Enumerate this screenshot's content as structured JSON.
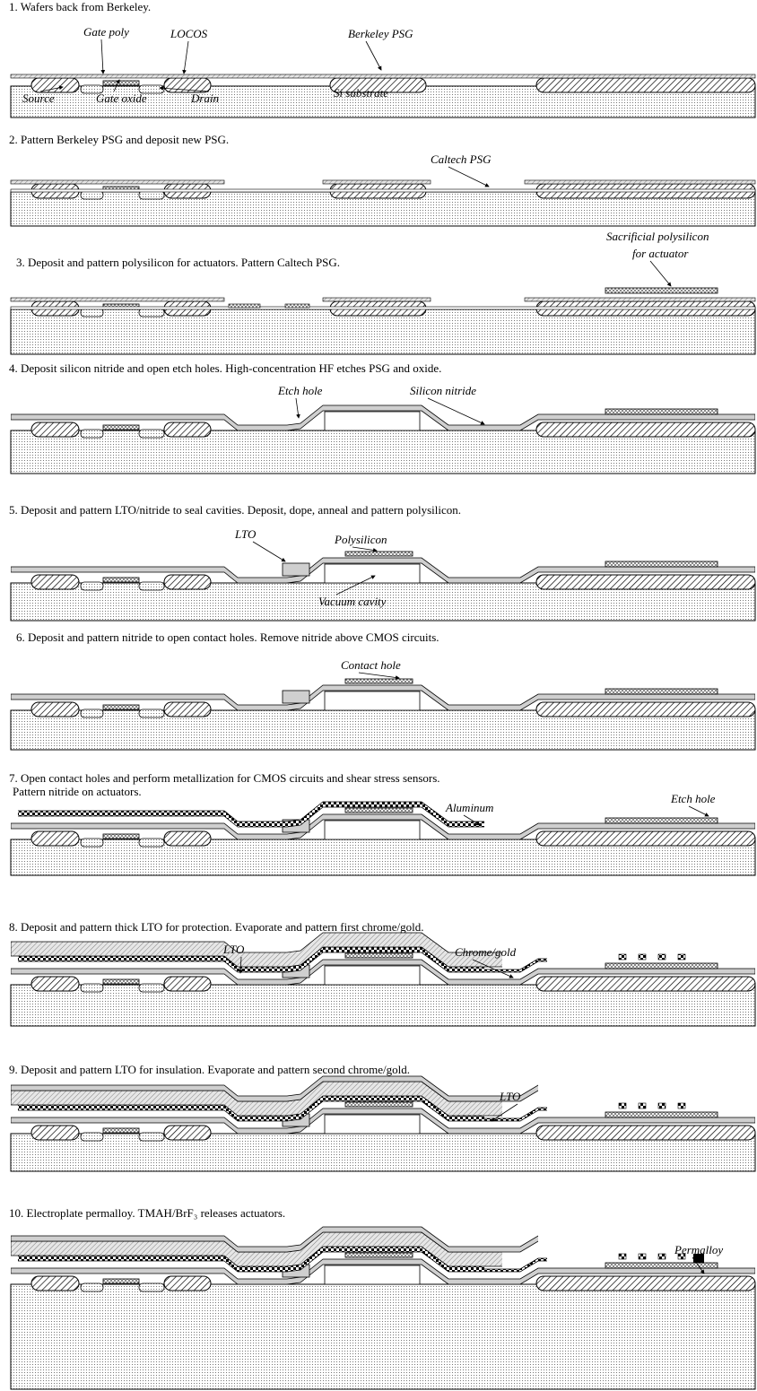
{
  "steps": [
    {
      "title": [
        "1. Wafers back from Berkeley."
      ],
      "labels": [
        "Gate poly",
        "LOCOS",
        "Berkeley PSG",
        "Source",
        "Gate oxide",
        "Drain",
        "Si substrate"
      ]
    },
    {
      "title": [
        "2. Pattern Berkeley PSG and deposit new PSG."
      ],
      "labels": [
        "Caltech PSG"
      ]
    },
    {
      "title": [
        "3. Deposit and pattern polysilicon for actuators. Pattern Caltech PSG."
      ],
      "labels": [
        "Sacrificial polysilicon",
        "for actuator"
      ]
    },
    {
      "title": [
        "4. Deposit silicon nitride and open etch holes. High-concentration HF etches PSG and oxide."
      ],
      "labels": [
        "Etch hole",
        "Silicon nitride"
      ]
    },
    {
      "title": [
        "5. Deposit and pattern LTO/nitride to seal cavities. Deposit, dope, anneal and pattern polysilicon."
      ],
      "labels": [
        "LTO",
        "Polysilicon",
        "Vacuum cavity"
      ]
    },
    {
      "title": [
        "6. Deposit and pattern nitride to open contact holes. Remove nitride above CMOS circuits."
      ],
      "labels": [
        "Contact hole"
      ]
    },
    {
      "title": [
        "7. Open contact holes and perform metallization for CMOS circuits and shear stress sensors.",
        "Pattern nitride on actuators."
      ],
      "labels": [
        "Aluminum",
        "Etch hole"
      ]
    },
    {
      "title": [
        "8. Deposit and pattern thick LTO for protection. Evaporate and pattern first chrome/gold."
      ],
      "labels": [
        "LTO",
        "Chrome/gold"
      ]
    },
    {
      "title": [
        "9. Deposit and pattern LTO for insulation. Evaporate and pattern second chrome/gold."
      ],
      "labels": [
        "LTO"
      ]
    },
    {
      "title": [
        "10. Electroplate permalloy. TMAH/BrF₃ releases actuators."
      ],
      "labels": [
        "Permalloy"
      ]
    }
  ]
}
